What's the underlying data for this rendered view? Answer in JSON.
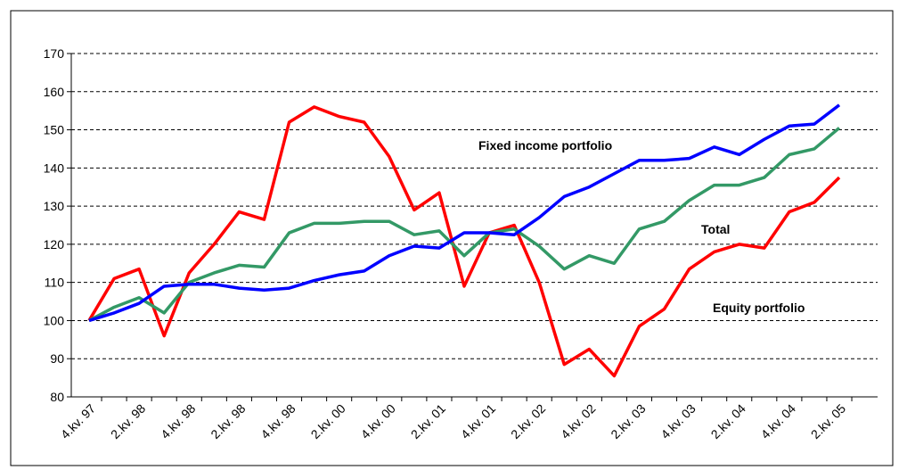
{
  "chart_data": {
    "type": "line",
    "categories": [
      "4.kv. 97",
      null,
      "2.kv. 98",
      null,
      "4.kv. 98",
      null,
      "2.kv. 98",
      null,
      "4.kv. 98",
      null,
      "2.kv. 00",
      null,
      "4.kv. 00",
      null,
      "2.kv. 01",
      null,
      "4.kv. 01",
      null,
      "2.kv. 02",
      null,
      "4.kv. 02",
      null,
      "2.kv. 03",
      null,
      "4.kv. 03",
      null,
      "2.kv. 04",
      null,
      "4.kv. 04",
      null,
      "2.kv. 05"
    ],
    "series": [
      {
        "name": "Equity portfolio",
        "color": "#ff0000",
        "values": [
          100,
          111,
          113.5,
          96,
          112.5,
          120,
          128.5,
          126.5,
          152,
          156,
          153.5,
          152,
          143,
          129,
          133.5,
          109,
          123,
          125,
          110,
          88.5,
          92.5,
          85.5,
          98.5,
          103,
          113.5,
          118,
          120,
          119,
          128.5,
          131,
          137.5
        ]
      },
      {
        "name": "Total",
        "color": "#339966",
        "values": [
          100,
          103.5,
          106,
          102,
          110,
          112.5,
          114.5,
          114,
          123,
          125.5,
          125.5,
          126,
          126,
          122.5,
          123.5,
          117,
          123,
          124,
          119.5,
          113.5,
          117,
          115,
          124,
          126,
          131.5,
          135.5,
          135.5,
          137.5,
          143.5,
          145,
          150.5
        ]
      },
      {
        "name": "Fixed income portfolio",
        "color": "#0000ff",
        "values": [
          100,
          102,
          104.5,
          109,
          109.5,
          109.5,
          108.5,
          108,
          108.5,
          110.5,
          112,
          113,
          117,
          119.5,
          119,
          123,
          123,
          122.5,
          127,
          132.5,
          135,
          138.5,
          142,
          142,
          142.5,
          145.5,
          143.5,
          147.5,
          151,
          151.5,
          156.5
        ]
      }
    ],
    "ylim": [
      80,
      170
    ],
    "yticks": [
      80,
      90,
      100,
      110,
      120,
      130,
      140,
      150,
      160,
      170
    ],
    "grid": true
  }
}
